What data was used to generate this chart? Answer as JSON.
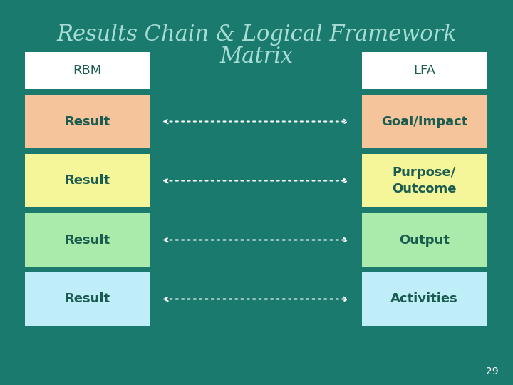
{
  "title_line1": "Results Chain & Logical Framework",
  "title_line2": "Matrix",
  "title_color": "#a8ddd6",
  "title_fontsize": 22,
  "background_color": "#1a7a6e",
  "page_number": "29",
  "left_header": "RBM",
  "right_header": "LFA",
  "header_box_color": "#ffffff",
  "header_text_color": "#1a5c50",
  "header_fontsize": 13,
  "header_underline": true,
  "rows": [
    {
      "left_label": "Result",
      "right_label": "Goal/Impact",
      "left_color": "#f5c49a",
      "right_color": "#f5c49a"
    },
    {
      "left_label": "Result",
      "right_label": "Purpose/\nOutcome",
      "left_color": "#f5f59a",
      "right_color": "#f5f59a"
    },
    {
      "left_label": "Result",
      "right_label": "Output",
      "left_color": "#aaeaaa",
      "right_color": "#aaeaaa"
    },
    {
      "left_label": "Result",
      "right_label": "Activities",
      "left_color": "#c0eef8",
      "right_color": "#c0eef8"
    }
  ],
  "row_text_color": "#1a5c50",
  "row_fontsize": 13
}
